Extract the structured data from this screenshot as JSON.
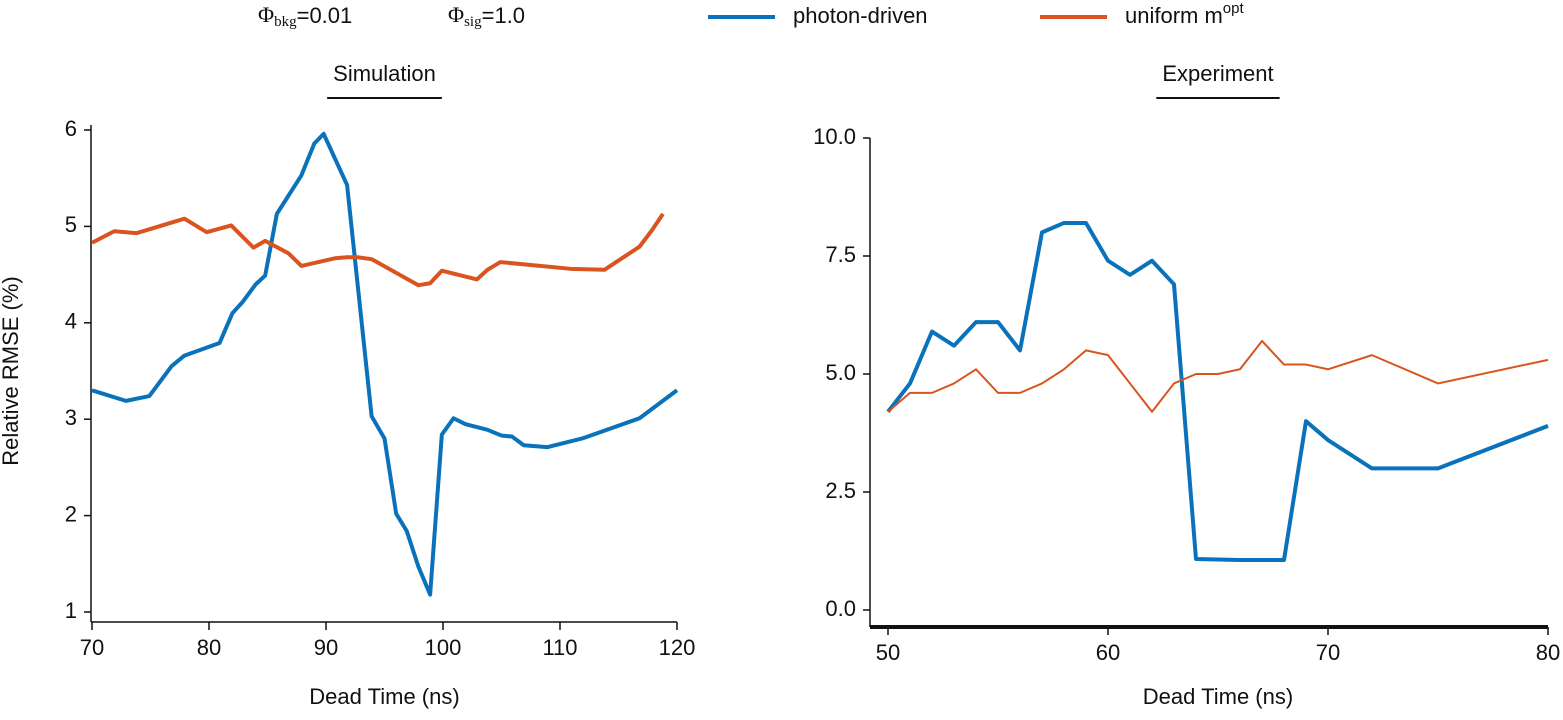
{
  "annotations": [
    {
      "symbol": "Φ",
      "subscript": "bkg",
      "text": "=0.01"
    },
    {
      "symbol": "Φ",
      "subscript": "sig",
      "text": "=1.0"
    }
  ],
  "chart_data": [
    {
      "type": "line",
      "title": "Simulation",
      "xlabel": "Dead Time (ns)",
      "ylabel": "Relative RMSE (%)",
      "xlim": [
        70,
        120
      ],
      "ylim": [
        1,
        6
      ],
      "xticks": [
        70,
        80,
        90,
        100,
        110,
        120
      ],
      "yticks": [
        1,
        2,
        3,
        4,
        5,
        6
      ],
      "series": [
        {
          "name": "photon-driven",
          "color": "#0a72ba",
          "line_width": 4,
          "x": [
            70,
            72.9,
            74.9,
            76.8,
            77.9,
            80.9,
            82,
            82.9,
            84,
            84.8,
            85.8,
            87.9,
            89,
            89.8,
            91.8,
            93.9,
            95,
            96,
            96.9,
            97.9,
            98.9,
            99.9,
            100.9,
            101.9,
            103.8,
            105,
            105.9,
            106.9,
            108.9,
            111.9,
            116.8,
            120
          ],
          "values": [
            3.3,
            3.19,
            3.24,
            3.55,
            3.66,
            3.79,
            4.1,
            4.22,
            4.4,
            4.49,
            5.13,
            5.53,
            5.86,
            5.96,
            5.43,
            3.03,
            2.8,
            2.02,
            1.84,
            1.47,
            1.18,
            2.84,
            3.01,
            2.95,
            2.89,
            2.83,
            2.82,
            2.73,
            2.71,
            2.8,
            3.01,
            3.3
          ]
        },
        {
          "name": "uniform m",
          "name_superscript": "opt",
          "color": "#d9541e",
          "line_width": 4,
          "x": [
            70,
            71.9,
            73.8,
            77.9,
            79.8,
            81.9,
            83.8,
            84.8,
            86.8,
            87.9,
            90.8,
            91.8,
            92.7,
            93.9,
            97.9,
            98.9,
            99.9,
            102.9,
            103.8,
            104.9,
            110.9,
            113.8,
            116.8,
            117.8,
            118.8
          ],
          "values": [
            4.83,
            4.95,
            4.93,
            5.08,
            4.94,
            5.01,
            4.78,
            4.85,
            4.72,
            4.59,
            4.67,
            4.68,
            4.68,
            4.66,
            4.39,
            4.41,
            4.54,
            4.45,
            4.55,
            4.63,
            4.56,
            4.55,
            4.79,
            4.95,
            5.13
          ]
        }
      ]
    },
    {
      "type": "line",
      "title": "Experiment",
      "xlabel": "Dead Time (ns)",
      "xlim": [
        50,
        80
      ],
      "ylim": [
        0,
        10
      ],
      "xticks": [
        50,
        60,
        70,
        80
      ],
      "yticks": [
        {
          "value": 0,
          "label": "0.0"
        },
        {
          "value": 2.5,
          "label": "2.5"
        },
        {
          "value": 5,
          "label": "5.0"
        },
        {
          "value": 7.5,
          "label": "7.5"
        },
        {
          "value": 10,
          "label": "10.0"
        }
      ],
      "series": [
        {
          "color": "#0a72ba",
          "line_width": 4,
          "x": [
            50,
            51,
            52,
            53,
            54,
            55,
            56,
            57,
            58,
            59,
            60,
            61,
            62,
            63,
            64,
            66,
            68,
            69,
            70,
            72,
            75,
            80
          ],
          "values": [
            4.2,
            4.8,
            5.9,
            5.6,
            6.1,
            6.1,
            5.5,
            8.0,
            8.2,
            8.2,
            7.4,
            7.1,
            7.4,
            6.9,
            1.08,
            1.06,
            1.06,
            4.0,
            3.6,
            3.0,
            3.0,
            3.9
          ]
        },
        {
          "color": "#d9541e",
          "line_width": 2,
          "x": [
            50,
            51,
            52,
            53,
            54,
            55,
            56,
            57,
            58,
            59,
            60,
            62,
            63,
            64,
            65,
            66,
            67,
            68,
            69,
            70,
            72,
            75,
            80
          ],
          "values": [
            4.2,
            4.6,
            4.6,
            4.8,
            5.1,
            4.6,
            4.6,
            4.8,
            5.1,
            5.5,
            5.4,
            4.2,
            4.8,
            5.0,
            5.0,
            5.1,
            5.7,
            5.2,
            5.2,
            5.1,
            5.4,
            4.8,
            5.3
          ]
        }
      ]
    }
  ]
}
